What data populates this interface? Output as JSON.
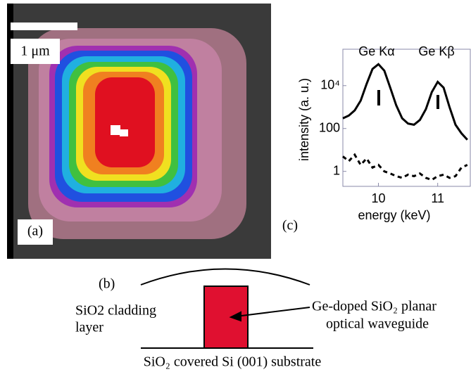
{
  "panel_a": {
    "scale_label": "1 μm",
    "label": "(a)"
  },
  "panel_b": {
    "label": "(b)",
    "cladding": [
      "SiO2 cladding",
      "layer"
    ],
    "waveguide": [
      "Ge-doped SiO₂ planar",
      "optical waveguide"
    ],
    "substrate": "SiO₂ covered Si (001) substrate"
  },
  "chart_data": {
    "type": "line",
    "panel_label": "(c)",
    "x_label": "energy (keV)",
    "y_label": "intensity (a. u.)",
    "annotations": [
      "Ge Kα",
      "Ge Kβ"
    ],
    "y_log": true,
    "x": [
      9.4,
      9.5,
      9.6,
      9.7,
      9.8,
      9.9,
      10.0,
      10.1,
      10.2,
      10.3,
      10.4,
      10.5,
      10.6,
      10.7,
      10.8,
      10.9,
      11.0,
      11.1,
      11.2,
      11.3,
      11.4,
      11.5
    ],
    "series": [
      {
        "color": "#000000",
        "values": [
          300,
          400,
          700,
          2000,
          12000,
          60000,
          100000,
          50000,
          8000,
          1200,
          300,
          170,
          150,
          250,
          800,
          5000,
          15000,
          8000,
          1000,
          150,
          60,
          30
        ]
      },
      {
        "color": "#000000",
        "values": [
          5,
          3,
          6,
          2,
          4,
          1.5,
          2,
          1,
          0.8,
          0.6,
          0.5,
          0.7,
          0.6,
          0.8,
          0.5,
          0.4,
          0.6,
          0.7,
          0.5,
          0.6,
          1.5,
          2
        ]
      }
    ],
    "xlim": [
      9.4,
      11.55
    ],
    "xticks": [
      10,
      11
    ],
    "ylim": [
      0.2,
      500000
    ],
    "yticks": [
      1,
      100,
      {
        "value": 10000,
        "label": "10⁴"
      }
    ]
  }
}
